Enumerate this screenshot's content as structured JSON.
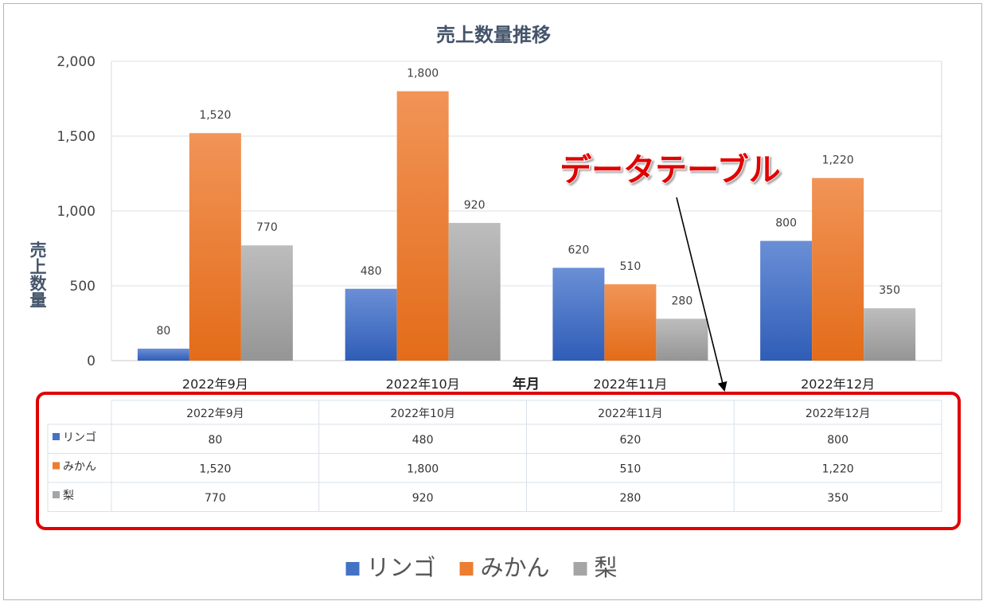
{
  "chart_data": {
    "type": "bar",
    "title": "売上数量推移",
    "xlabel": "年月",
    "ylabel": "売上数量",
    "ylim": [
      0,
      2000
    ],
    "yticks": [
      "0",
      "500",
      "1,000",
      "1,500",
      "2,000"
    ],
    "categories": [
      "2022年9月",
      "2022年10月",
      "2022年11月",
      "2022年12月"
    ],
    "series": [
      {
        "name": "リンゴ",
        "color": "#4472C4",
        "values": [
          80,
          480,
          620,
          800
        ],
        "labels": [
          "80",
          "480",
          "620",
          "800"
        ]
      },
      {
        "name": "みかん",
        "color": "#ED7D31",
        "values": [
          1520,
          1800,
          510,
          1220
        ],
        "labels": [
          "1,520",
          "1,800",
          "510",
          "1,220"
        ]
      },
      {
        "name": "梨",
        "color": "#A5A5A5",
        "values": [
          770,
          920,
          280,
          350
        ],
        "labels": [
          "770",
          "920",
          "280",
          "350"
        ]
      }
    ],
    "grid": true,
    "legend": "bottom",
    "data_table": true
  },
  "annotation": {
    "label": "データテーブル",
    "color": "#E00000"
  }
}
